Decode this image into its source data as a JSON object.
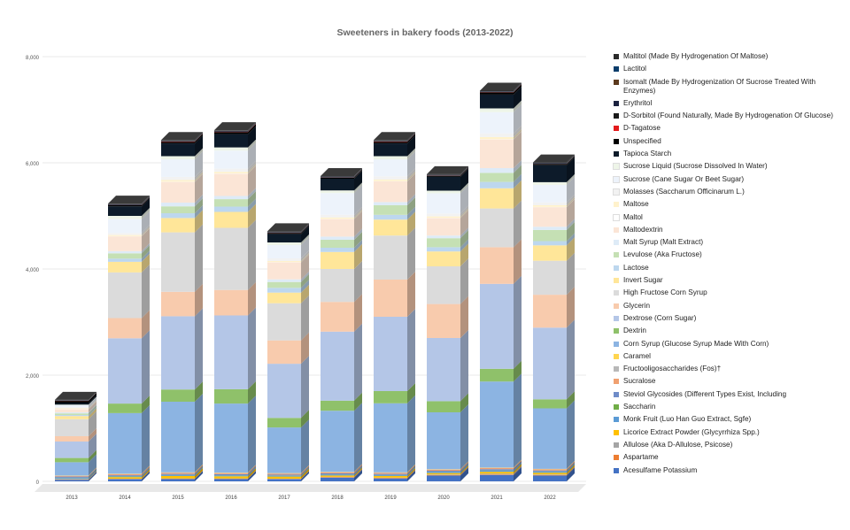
{
  "chart_data": {
    "type": "bar",
    "stacked": true,
    "style": "3d",
    "title": "Sweeteners in bakery foods (2013-2022)",
    "xlabel": "",
    "ylabel": "",
    "ylim": [
      0,
      8000
    ],
    "yticks": [
      0,
      2000,
      4000,
      6000,
      8000
    ],
    "ytick_labels": [
      "0",
      "2,000",
      "4,000",
      "6,000",
      "8,000"
    ],
    "grid": true,
    "legend_position": "right",
    "categories": [
      "2013",
      "2014",
      "2015",
      "2016",
      "2017",
      "2018",
      "2019",
      "2020",
      "2021",
      "2022"
    ],
    "series": [
      {
        "name": "Acesulfame Potassium",
        "color": "#4472C4",
        "values": [
          30,
          40,
          45,
          45,
          40,
          70,
          55,
          110,
          120,
          110
        ]
      },
      {
        "name": "Aspartame",
        "color": "#ED7D31",
        "values": [
          5,
          5,
          5,
          5,
          5,
          10,
          10,
          10,
          10,
          10
        ]
      },
      {
        "name": "Allulose (Aka D-Allulose, Psicose)",
        "color": "#A5A5A5",
        "values": [
          5,
          5,
          5,
          5,
          5,
          5,
          5,
          10,
          15,
          10
        ]
      },
      {
        "name": "Licorice Extract Powder (Glycyrrhiza Spp.)",
        "color": "#FFC000",
        "values": [
          5,
          30,
          45,
          40,
          40,
          25,
          30,
          25,
          35,
          30
        ]
      },
      {
        "name": "Monk Fruit (Luo Han Guo Extract, Sgfe)",
        "color": "#5B9BD5",
        "values": [
          20,
          15,
          15,
          15,
          15,
          15,
          15,
          20,
          20,
          20
        ]
      },
      {
        "name": "Saccharin",
        "color": "#70AD47",
        "values": [
          5,
          5,
          5,
          5,
          5,
          5,
          5,
          5,
          5,
          5
        ]
      },
      {
        "name": "Steviol Glycosides (Different Types Exist, Including",
        "color": "#6F8CC8",
        "values": [
          20,
          15,
          20,
          20,
          15,
          20,
          20,
          20,
          25,
          20
        ]
      },
      {
        "name": "Sucralose",
        "color": "#F0A070",
        "values": [
          10,
          20,
          20,
          20,
          20,
          20,
          20,
          20,
          20,
          20
        ]
      },
      {
        "name": "Fructooligosaccharides (Fos)†",
        "color": "#B8B8B8",
        "values": [
          5,
          5,
          5,
          5,
          5,
          5,
          5,
          5,
          5,
          5
        ]
      },
      {
        "name": "Caramel",
        "color": "#FFD54F",
        "values": [
          5,
          5,
          5,
          5,
          5,
          5,
          5,
          5,
          5,
          5
        ]
      },
      {
        "name": "Corn Syrup (Glucose Syrup Made With Corn)",
        "color": "#8CB4E2",
        "values": [
          250,
          1140,
          1330,
          1300,
          860,
          1150,
          1300,
          1070,
          1620,
          1140
        ]
      },
      {
        "name": "Dextrin",
        "color": "#8FC16A",
        "values": [
          80,
          180,
          230,
          270,
          180,
          190,
          230,
          210,
          240,
          170
        ]
      },
      {
        "name": "Dextrose (Corn Sugar)",
        "color": "#B4C6E7",
        "values": [
          310,
          1230,
          1380,
          1390,
          1020,
          1300,
          1400,
          1190,
          1600,
          1350
        ]
      },
      {
        "name": "Glycerin",
        "color": "#F8CBAD",
        "values": [
          100,
          380,
          460,
          480,
          440,
          560,
          700,
          640,
          690,
          620
        ]
      },
      {
        "name": "High Fructose Corn Syrup",
        "color": "#DBDBDB",
        "values": [
          320,
          860,
          1120,
          1170,
          700,
          620,
          830,
          710,
          730,
          640
        ]
      },
      {
        "name": "Invert Sugar",
        "color": "#FFE699",
        "values": [
          60,
          200,
          270,
          300,
          200,
          320,
          300,
          280,
          380,
          290
        ]
      },
      {
        "name": "Lactose",
        "color": "#BDD7EE",
        "values": [
          20,
          60,
          90,
          100,
          90,
          80,
          90,
          80,
          120,
          80
        ]
      },
      {
        "name": "Levulose (Aka Fructose)",
        "color": "#C5E0B4",
        "values": [
          30,
          100,
          130,
          140,
          110,
          150,
          180,
          170,
          170,
          210
        ]
      },
      {
        "name": "Malt Syrup (Malt Extract)",
        "color": "#DEEBF7",
        "values": [
          20,
          40,
          70,
          60,
          50,
          60,
          60,
          50,
          90,
          60
        ]
      },
      {
        "name": "Maltodextrin",
        "color": "#FBE5D6",
        "values": [
          60,
          280,
          390,
          420,
          320,
          330,
          390,
          330,
          540,
          370
        ]
      },
      {
        "name": "Maltol",
        "color": "#FFFFFF",
        "values": [
          5,
          5,
          5,
          5,
          5,
          5,
          5,
          5,
          5,
          5
        ]
      },
      {
        "name": "Maltose",
        "color": "#FFF2CC",
        "values": [
          10,
          20,
          30,
          30,
          20,
          25,
          30,
          25,
          40,
          30
        ]
      },
      {
        "name": "Molasses (Saccharum Officinarum L.)",
        "color": "#F2F2F2",
        "values": [
          20,
          40,
          60,
          60,
          50,
          50,
          60,
          55,
          70,
          55
        ]
      },
      {
        "name": "Sucrose (Cane Sugar Or Beet Sugar)",
        "color": "#EDF3FB",
        "values": [
          40,
          260,
          330,
          340,
          250,
          410,
          320,
          380,
          400,
          330
        ]
      },
      {
        "name": "Sucrose Liquid (Sucrose Dissolved In Water)",
        "color": "#EEF5E8",
        "values": [
          10,
          60,
          60,
          60,
          50,
          50,
          60,
          50,
          70,
          50
        ]
      },
      {
        "name": "Tapioca Starch",
        "color": "#0D1B2A",
        "values": [
          30,
          180,
          240,
          250,
          160,
          220,
          240,
          260,
          260,
          320
        ]
      },
      {
        "name": "Unspecified",
        "color": "#000000",
        "values": [
          40,
          20,
          30,
          40,
          20,
          20,
          30,
          20,
          40,
          20
        ]
      },
      {
        "name": "D-Tagatose",
        "color": "#E31A1C",
        "values": [
          2,
          2,
          5,
          5,
          2,
          2,
          5,
          2,
          5,
          2
        ]
      },
      {
        "name": "D-Sorbitol (Found Naturally, Made By Hydrogenation Of Glucose)",
        "color": "#1A1A1A",
        "values": [
          5,
          5,
          5,
          5,
          5,
          5,
          5,
          5,
          5,
          5
        ]
      },
      {
        "name": "Erythritol",
        "color": "#1B2240",
        "values": [
          5,
          10,
          10,
          10,
          10,
          10,
          10,
          10,
          10,
          10
        ]
      },
      {
        "name": "Isomalt (Made By Hydrogenization Of Sucrose Treated With Enzymes)",
        "color": "#5C3A1E",
        "values": [
          2,
          2,
          2,
          2,
          2,
          2,
          2,
          2,
          2,
          2
        ]
      },
      {
        "name": "Lactitol",
        "color": "#0B3D6B",
        "values": [
          2,
          2,
          2,
          2,
          2,
          2,
          2,
          2,
          2,
          2
        ]
      },
      {
        "name": "Maltitol (Made By Hydrogenation Of Maltose)",
        "color": "#2B2B2B",
        "values": [
          5,
          10,
          10,
          10,
          10,
          10,
          10,
          10,
          10,
          10
        ]
      }
    ]
  }
}
